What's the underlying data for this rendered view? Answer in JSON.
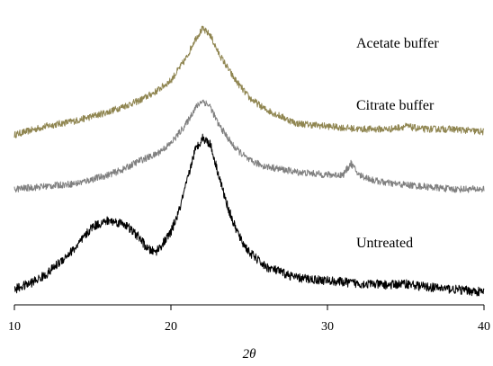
{
  "chart_data": {
    "type": "line",
    "xlabel": "2θ",
    "ylabel": "",
    "xlim": [
      10,
      40
    ],
    "xticks": [
      10,
      20,
      30,
      40
    ],
    "grid": false,
    "series": [
      {
        "name": "Acetate buffer",
        "color": "#8f8550",
        "x": [
          10,
          12,
          14,
          16,
          18,
          19,
          20,
          21,
          21.5,
          22,
          22.5,
          23,
          24,
          25,
          26,
          28,
          30,
          32,
          34,
          35,
          36,
          38,
          40
        ],
        "y": [
          0.56,
          0.59,
          0.61,
          0.64,
          0.68,
          0.71,
          0.75,
          0.83,
          0.89,
          0.93,
          0.91,
          0.85,
          0.76,
          0.69,
          0.65,
          0.6,
          0.59,
          0.58,
          0.58,
          0.59,
          0.58,
          0.58,
          0.57
        ]
      },
      {
        "name": "Citrate buffer",
        "color": "#7f7f7f",
        "x": [
          10,
          12,
          14,
          16,
          17,
          18,
          19,
          20,
          21,
          21.5,
          22,
          22.5,
          23,
          24,
          25,
          26,
          28,
          30,
          31,
          31.5,
          32,
          33,
          34,
          36,
          38,
          40
        ],
        "y": [
          0.37,
          0.38,
          0.39,
          0.42,
          0.44,
          0.47,
          0.49,
          0.53,
          0.6,
          0.65,
          0.68,
          0.66,
          0.6,
          0.52,
          0.47,
          0.45,
          0.43,
          0.42,
          0.42,
          0.46,
          0.42,
          0.4,
          0.39,
          0.38,
          0.37,
          0.37
        ]
      },
      {
        "name": "Untreated",
        "color": "#000000",
        "x": [
          10,
          11,
          12,
          13,
          14,
          15,
          16,
          17,
          18,
          18.5,
          19,
          19.5,
          20,
          20.5,
          21,
          21.5,
          22,
          22.5,
          23,
          23.5,
          24,
          24.5,
          25,
          26,
          27,
          28,
          30,
          32,
          34,
          35,
          36,
          38,
          40
        ],
        "y": [
          0.02,
          0.04,
          0.07,
          0.12,
          0.17,
          0.24,
          0.26,
          0.25,
          0.2,
          0.16,
          0.15,
          0.18,
          0.22,
          0.29,
          0.39,
          0.5,
          0.55,
          0.53,
          0.43,
          0.33,
          0.25,
          0.19,
          0.15,
          0.1,
          0.08,
          0.06,
          0.05,
          0.04,
          0.035,
          0.04,
          0.03,
          0.02,
          0.01
        ]
      }
    ]
  }
}
